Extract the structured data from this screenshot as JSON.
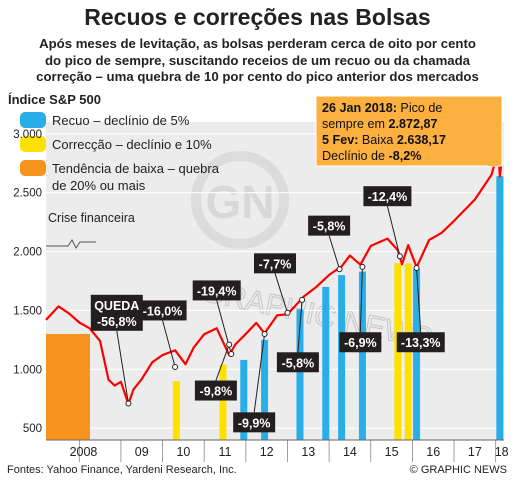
{
  "title": "Recuos e correções nas Bolsas",
  "subtitle": [
    "Após meses de levitação, as bolsas perderam cerca de oito por cento",
    "do pico de sempre, suscitando receios de um recuo ou da chamada",
    "correção – uma quebra de 10 por cento do pico anterior dos mercados"
  ],
  "footer": {
    "source": "Fontes: Yahoo Finance, Yardeni Research, Inc.",
    "credit": "© GRAPHIC NEWS"
  },
  "watermark": "GRAPHIC NEWS",
  "colors": {
    "blue": "#29aee8",
    "yellow": "#ffe100",
    "orange": "#f7941d",
    "line": "#ff0000",
    "callout_bg": "#fbb040",
    "plot_bg": "#ececec"
  },
  "chart_data": {
    "type": "line",
    "ylabel": "Índice S&P 500",
    "x_tick_labels": [
      "2008",
      "09",
      "10",
      "11",
      "12",
      "13",
      "14",
      "15",
      "16",
      "17",
      "18"
    ],
    "y_tick_labels": [
      "3.000",
      "2.500",
      "2.000",
      "1.500",
      "1.000",
      "500"
    ],
    "yticks": [
      3000,
      2500,
      2000,
      1500,
      1000,
      500
    ],
    "ylim": [
      400,
      3100
    ],
    "xlim": [
      2007.2,
      2018.2
    ],
    "grid": true,
    "legend_position": "top-left",
    "legend": [
      {
        "label_lines": [
          "Recuo – declínio de 5%"
        ],
        "color": "#29aee8"
      },
      {
        "label_lines": [
          "Correcção – declínio e 10%"
        ],
        "color": "#ffe100"
      },
      {
        "label_lines": [
          "Tendência de baixa – quebra",
          "de 20% ou mais"
        ],
        "color": "#f7941d"
      }
    ],
    "series": [
      {
        "x": [
          2007.2,
          2007.5,
          2007.75,
          2008.0,
          2008.25,
          2008.5,
          2008.7,
          2008.85,
          2009.0,
          2009.18,
          2009.3,
          2009.5,
          2009.75,
          2010.0,
          2010.3,
          2010.55,
          2010.75,
          2011.0,
          2011.3,
          2011.6,
          2011.75,
          2012.0,
          2012.25,
          2012.45,
          2012.75,
          2013.0,
          2013.4,
          2013.7,
          2014.0,
          2014.3,
          2014.5,
          2014.75,
          2015.0,
          2015.4,
          2015.65,
          2015.75,
          2015.9,
          2016.1,
          2016.4,
          2016.7,
          2017.0,
          2017.5,
          2017.9,
          2018.07,
          2018.1,
          2018.14
        ],
        "values": [
          1420,
          1540,
          1470,
          1380,
          1360,
          1240,
          900,
          880,
          900,
          700,
          810,
          930,
          1060,
          1110,
          1180,
          1050,
          1180,
          1280,
          1360,
          1120,
          1200,
          1320,
          1400,
          1300,
          1440,
          1480,
          1620,
          1690,
          1820,
          1880,
          1960,
          1870,
          2060,
          2110,
          2000,
          1910,
          2060,
          1860,
          2080,
          2170,
          2260,
          2430,
          2670,
          2872.87,
          2638.17,
          2760
        ]
      }
    ],
    "bands": [
      {
        "x": 2007.55,
        "type": "orange",
        "y_top": 1300
      },
      {
        "x": 2010.33,
        "type": "yellow",
        "y_top": 900
      },
      {
        "x": 2011.45,
        "type": "yellow",
        "y_top": 1040
      },
      {
        "x": 2011.95,
        "type": "blue",
        "y_top": 1080
      },
      {
        "x": 2012.45,
        "type": "blue",
        "y_top": 1250
      },
      {
        "x": 2013.3,
        "type": "blue",
        "y_top": 1510
      },
      {
        "x": 2013.92,
        "type": "blue",
        "y_top": 1700
      },
      {
        "x": 2014.3,
        "type": "blue",
        "y_top": 1800
      },
      {
        "x": 2014.8,
        "type": "blue",
        "y_top": 1830
      },
      {
        "x": 2015.65,
        "type": "yellow",
        "y_top": 1900
      },
      {
        "x": 2015.9,
        "type": "yellow",
        "y_top": 1900
      },
      {
        "x": 2016.1,
        "type": "blue",
        "y_top": 1850
      },
      {
        "x": 2018.1,
        "type": "blue",
        "y_top": 2640
      }
    ],
    "annotations": [
      {
        "lines": [
          "QUEDA",
          "-56,8%"
        ],
        "x": 2008.9,
        "y": 1480,
        "lx": 2009.18,
        "ly": 710
      },
      {
        "lines": [
          "-16,0%"
        ],
        "x": 2010.0,
        "y": 1500,
        "lx": 2010.3,
        "ly": 1020
      },
      {
        "lines": [
          "-19,4%"
        ],
        "x": 2011.3,
        "y": 1670,
        "lx": 2011.65,
        "ly": 1130
      },
      {
        "lines": [
          "-9,8%"
        ],
        "x": 2011.28,
        "y": 820,
        "lx": 2011.6,
        "ly": 1210
      },
      {
        "lines": [
          "-9,9%"
        ],
        "x": 2012.2,
        "y": 550,
        "lx": 2012.45,
        "ly": 1300
      },
      {
        "lines": [
          "-7,7%"
        ],
        "x": 2012.7,
        "y": 1900,
        "lx": 2013.0,
        "ly": 1480
      },
      {
        "lines": [
          "-5,8%"
        ],
        "x": 2013.25,
        "y": 1060,
        "lx": 2013.35,
        "ly": 1590
      },
      {
        "lines": [
          "-5,8%"
        ],
        "x": 2014.0,
        "y": 2220,
        "lx": 2014.25,
        "ly": 1850
      },
      {
        "lines": [
          "-6,9%"
        ],
        "x": 2014.75,
        "y": 1230,
        "lx": 2014.8,
        "ly": 1870
      },
      {
        "lines": [
          "-12,4%"
        ],
        "x": 2015.4,
        "y": 2470,
        "lx": 2015.7,
        "ly": 1960
      },
      {
        "lines": [
          "-13,3%"
        ],
        "x": 2016.2,
        "y": 1230,
        "lx": 2016.1,
        "ly": 1860
      }
    ],
    "callout": {
      "date1": "26 Jan 2018:",
      "text1": " Pico de",
      "text2": "sempre em ",
      "value1": "2.872,87",
      "date2": "5 Fev:",
      "text3": " Baixa ",
      "value2": "2.638,17",
      "text4": "Declínio de ",
      "value3": "-8,2%",
      "x": 2018.07,
      "y": 2872.87
    },
    "crisis_label": "Crise financeira"
  }
}
